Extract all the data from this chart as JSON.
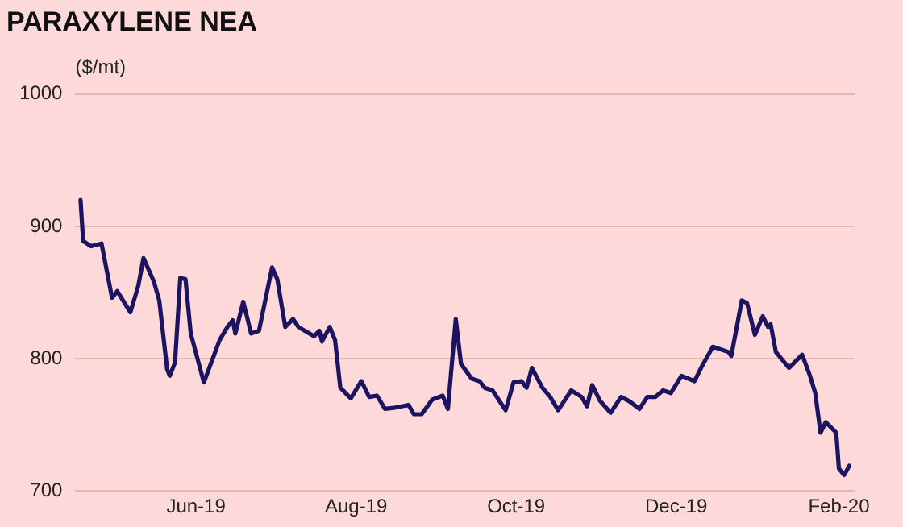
{
  "chart_data": {
    "type": "line",
    "title": "PARAXYLENE NEA",
    "ylabel": "($/mt)",
    "x": [
      "2019-04-18",
      "2019-04-19",
      "2019-04-22",
      "2019-04-26",
      "2019-04-30",
      "2019-05-02",
      "2019-05-07",
      "2019-05-10",
      "2019-05-12",
      "2019-05-16",
      "2019-05-18",
      "2019-05-21",
      "2019-05-22",
      "2019-05-24",
      "2019-05-26",
      "2019-05-28",
      "2019-05-30",
      "2019-06-04",
      "2019-06-10",
      "2019-06-13",
      "2019-06-15",
      "2019-06-16",
      "2019-06-19",
      "2019-06-22",
      "2019-06-25",
      "2019-06-30",
      "2019-07-02",
      "2019-07-05",
      "2019-07-08",
      "2019-07-10",
      "2019-07-16",
      "2019-07-18",
      "2019-07-19",
      "2019-07-22",
      "2019-07-24",
      "2019-07-26",
      "2019-07-30",
      "2019-08-03",
      "2019-08-06",
      "2019-08-09",
      "2019-08-12",
      "2019-08-16",
      "2019-08-21",
      "2019-08-23",
      "2019-08-26",
      "2019-08-30",
      "2019-09-03",
      "2019-09-05",
      "2019-09-08",
      "2019-09-10",
      "2019-09-14",
      "2019-09-17",
      "2019-09-19",
      "2019-09-22",
      "2019-09-27",
      "2019-09-30",
      "2019-10-03",
      "2019-10-05",
      "2019-10-07",
      "2019-10-11",
      "2019-10-14",
      "2019-10-17",
      "2019-10-22",
      "2019-10-26",
      "2019-10-28",
      "2019-10-30",
      "2019-11-02",
      "2019-11-06",
      "2019-11-10",
      "2019-11-13",
      "2019-11-17",
      "2019-11-20",
      "2019-11-23",
      "2019-11-26",
      "2019-11-29",
      "2019-12-03",
      "2019-12-08",
      "2019-12-11",
      "2019-12-15",
      "2019-12-21",
      "2019-12-22",
      "2019-12-26",
      "2019-12-28",
      "2019-12-31",
      "2020-01-03",
      "2020-01-05",
      "2020-01-06",
      "2020-01-08",
      "2020-01-13",
      "2020-01-18",
      "2020-01-21",
      "2020-01-23",
      "2020-01-25",
      "2020-01-27",
      "2020-01-31",
      "2020-02-01",
      "2020-02-03",
      "2020-02-05"
    ],
    "series": [
      {
        "color": "#1c1460",
        "values": [
          920,
          889,
          885,
          887,
          846,
          851,
          835,
          855,
          876,
          858,
          844,
          792,
          787,
          797,
          861,
          860,
          819,
          782,
          814,
          824,
          829,
          819,
          843,
          819,
          821,
          869,
          860,
          824,
          830,
          824,
          817,
          821,
          813,
          824,
          814,
          778,
          770,
          783,
          771,
          772,
          762,
          763,
          765,
          758,
          758,
          769,
          772,
          762,
          830,
          796,
          785,
          783,
          778,
          776,
          761,
          782,
          783,
          778,
          793,
          778,
          771,
          761,
          776,
          771,
          764,
          780,
          768,
          759,
          771,
          768,
          762,
          771,
          771,
          776,
          774,
          787,
          783,
          795,
          809,
          805,
          802,
          844,
          842,
          818,
          832,
          824,
          826,
          805,
          793,
          803,
          787,
          774,
          744,
          752,
          744,
          717,
          712,
          719
        ]
      }
    ],
    "xlim": [
      "2019-04-16",
      "2020-02-07"
    ],
    "xticks": [
      {
        "value": "2019-06-01",
        "label": "Jun-19"
      },
      {
        "value": "2019-08-01",
        "label": "Aug-19"
      },
      {
        "value": "2019-10-01",
        "label": "Oct-19"
      },
      {
        "value": "2019-12-01",
        "label": "Dec-19"
      },
      {
        "value": "2020-02-01",
        "label": "Feb-20"
      }
    ],
    "ylim": [
      700,
      1000
    ],
    "yticks": [
      700,
      800,
      900,
      1000
    ],
    "grid": "y",
    "legend": false,
    "marker": "none",
    "line_style": "solid"
  }
}
